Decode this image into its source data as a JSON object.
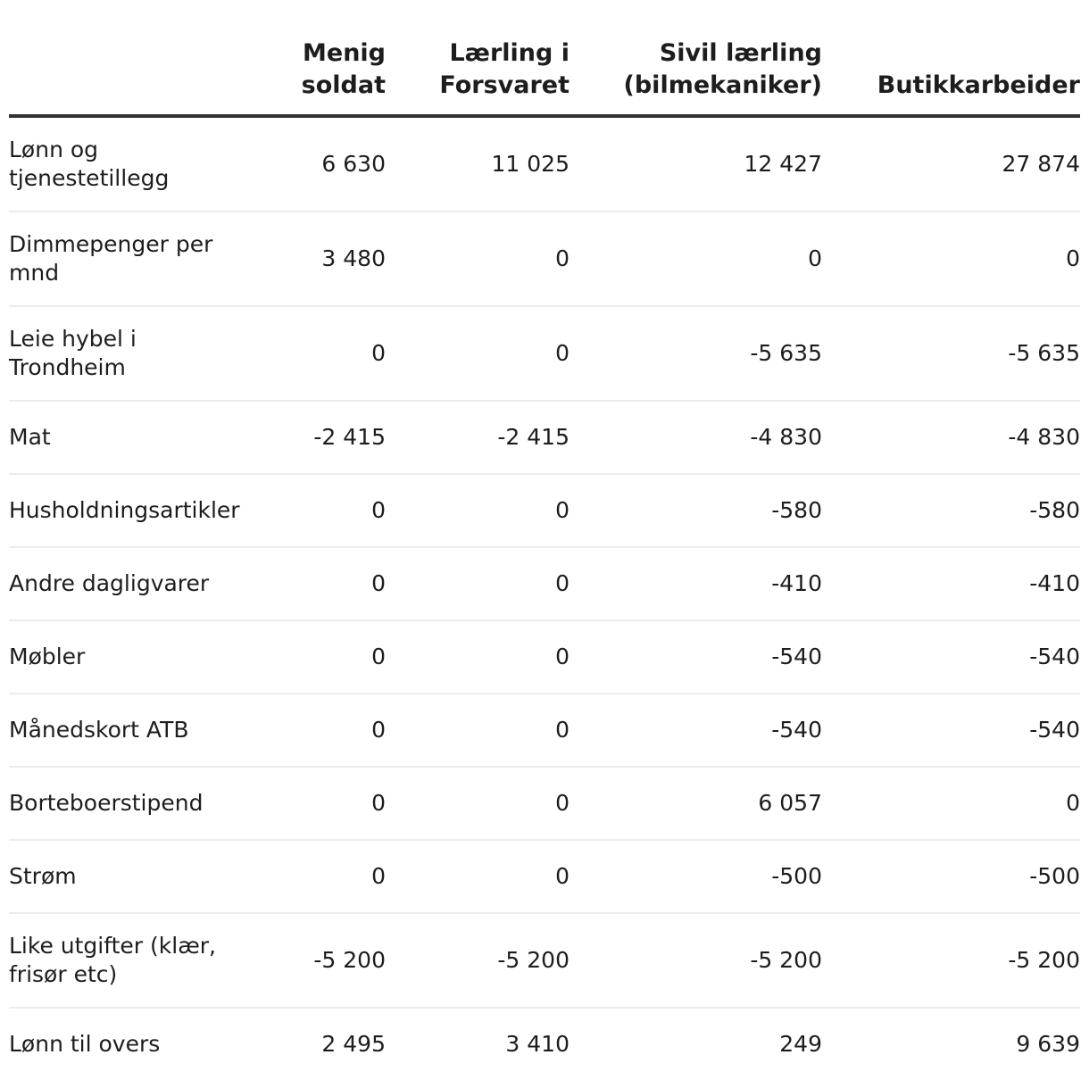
{
  "chart_data": {
    "type": "table",
    "columns": [
      "",
      "Menig soldat",
      "Lærling i Forsvaret",
      "Sivil lærling (bilmekaniker)",
      "Butikkarbeider"
    ],
    "rows": [
      {
        "label": "Lønn og tjenestetillegg",
        "values": [
          "6 630",
          "11 025",
          "12 427",
          "27 874"
        ]
      },
      {
        "label": "Dimmepenger per mnd",
        "values": [
          "3 480",
          "0",
          "0",
          "0"
        ]
      },
      {
        "label": "Leie hybel i Trondheim",
        "values": [
          "0",
          "0",
          "-5 635",
          "-5 635"
        ]
      },
      {
        "label": "Mat",
        "values": [
          "-2 415",
          "-2 415",
          "-4 830",
          "-4 830"
        ]
      },
      {
        "label": "Husholdningsartikler",
        "values": [
          "0",
          "0",
          "-580",
          "-580"
        ]
      },
      {
        "label": "Andre dagligvarer",
        "values": [
          "0",
          "0",
          "-410",
          "-410"
        ]
      },
      {
        "label": "Møbler",
        "values": [
          "0",
          "0",
          "-540",
          "-540"
        ]
      },
      {
        "label": "Månedskort ATB",
        "values": [
          "0",
          "0",
          "-540",
          "-540"
        ]
      },
      {
        "label": "Borteboerstipend",
        "values": [
          "0",
          "0",
          "6 057",
          "0"
        ]
      },
      {
        "label": "Strøm",
        "values": [
          "0",
          "0",
          "-500",
          "-500"
        ]
      },
      {
        "label": "Like utgifter (klær, frisør etc)",
        "values": [
          "-5 200",
          "-5 200",
          "-5 200",
          "-5 200"
        ]
      },
      {
        "label": "Lønn til overs",
        "values": [
          "2 495",
          "3 410",
          "249",
          "9 639"
        ]
      }
    ],
    "colors": {
      "header_rule": "#333333",
      "row_rule": "#ececec",
      "text": "#1d1d1d"
    }
  }
}
